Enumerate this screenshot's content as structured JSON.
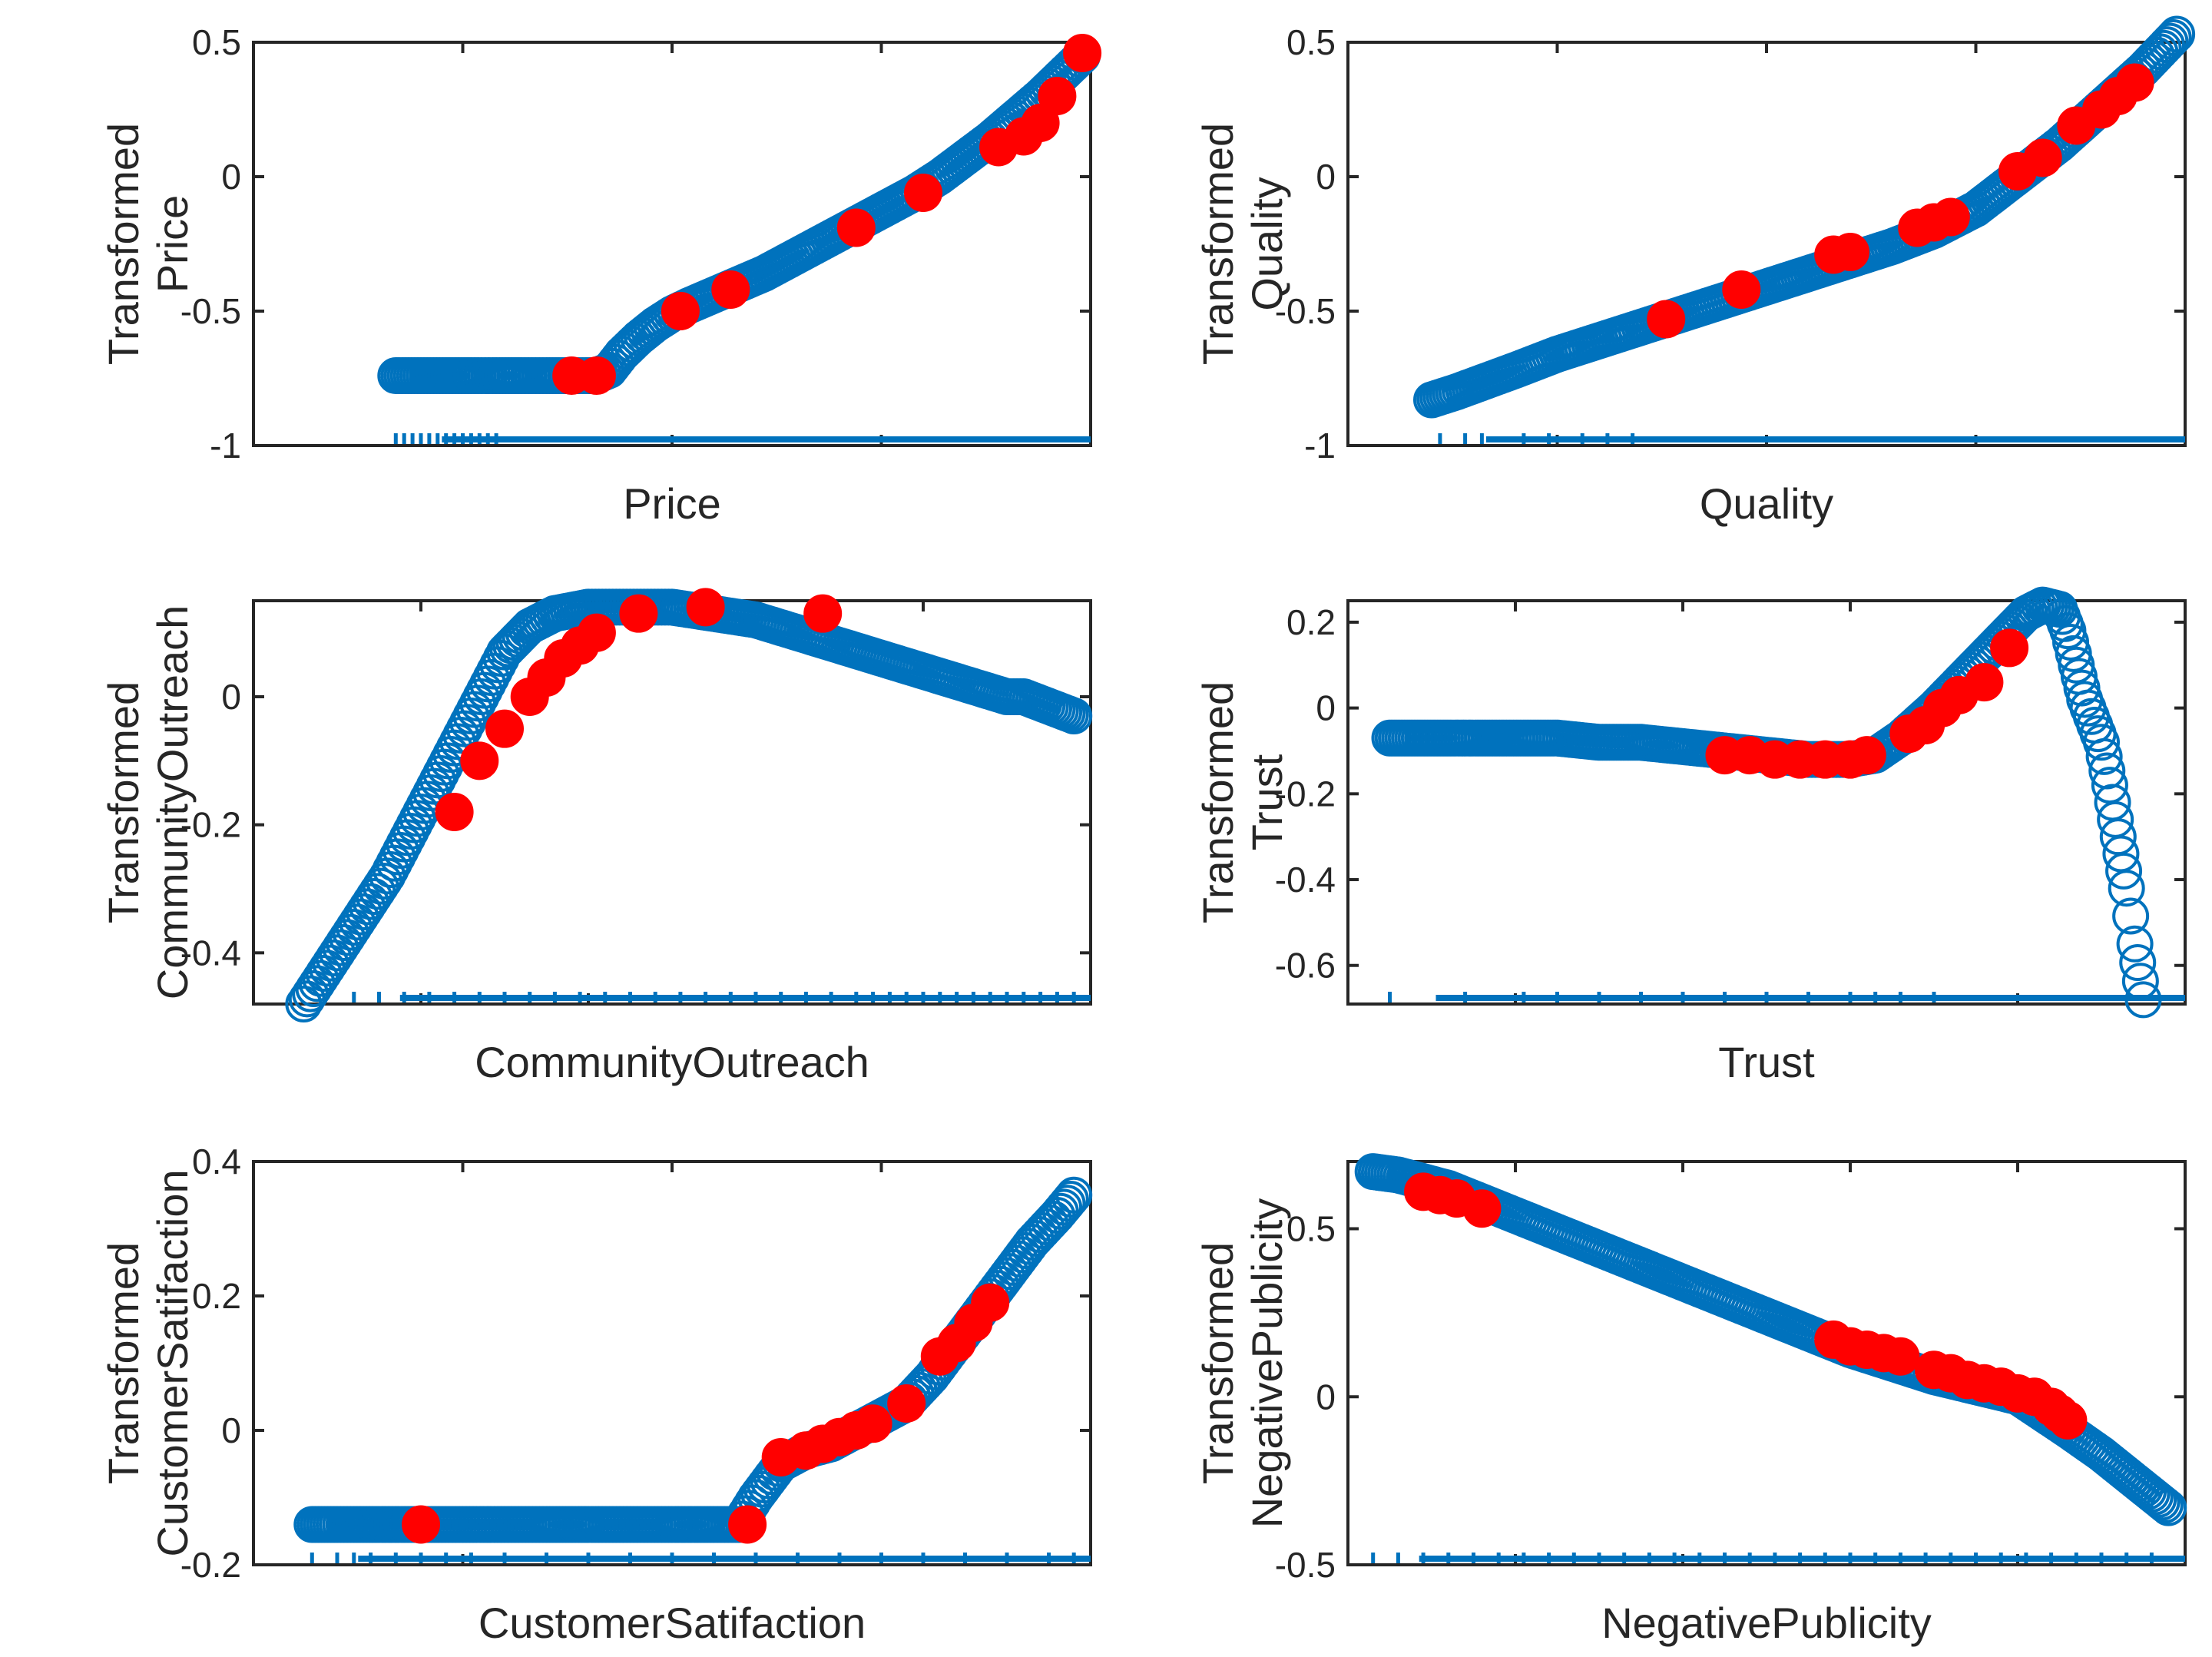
{
  "colors": {
    "marker": "#0072BD",
    "highlight": "#FF0000",
    "axis": "#262626"
  },
  "chart_data": [
    {
      "type": "scatter",
      "xlabel": "Price",
      "ylabel": [
        "Transformed",
        "Price"
      ],
      "ylim": [
        -1,
        0.5
      ],
      "yticks": [
        -1,
        -0.5,
        0,
        0.5
      ],
      "ytick_labels": [
        "-1",
        "-0.5",
        "0",
        "0.5"
      ],
      "xlim": [
        0,
        1
      ],
      "xticks": [
        0,
        0.25,
        0.5,
        0.75,
        1
      ],
      "series": [
        {
          "x": [
            0.17,
            0.2,
            0.23,
            0.26,
            0.29,
            0.32,
            0.35,
            0.38,
            0.41,
            0.425,
            0.44,
            0.46,
            0.48,
            0.5,
            0.52,
            0.55,
            0.58,
            0.61,
            0.64,
            0.67,
            0.7,
            0.73,
            0.76,
            0.79,
            0.82,
            0.85,
            0.88,
            0.91,
            0.94,
            0.97,
            0.99
          ],
          "y": [
            -0.74,
            -0.74,
            -0.74,
            -0.74,
            -0.74,
            -0.74,
            -0.74,
            -0.74,
            -0.74,
            -0.72,
            -0.66,
            -0.6,
            -0.55,
            -0.51,
            -0.48,
            -0.44,
            -0.4,
            -0.36,
            -0.31,
            -0.26,
            -0.21,
            -0.16,
            -0.11,
            -0.06,
            0.0,
            0.07,
            0.14,
            0.22,
            0.3,
            0.39,
            0.45
          ]
        }
      ],
      "highlight": {
        "x": [
          0.38,
          0.41,
          0.51,
          0.57,
          0.72,
          0.8,
          0.89,
          0.92,
          0.94,
          0.96,
          0.99
        ],
        "y": [
          -0.74,
          -0.74,
          -0.5,
          -0.42,
          -0.19,
          -0.06,
          0.11,
          0.15,
          0.2,
          0.3,
          0.46
        ]
      },
      "rug": [
        0.17,
        0.18,
        0.19,
        0.2,
        0.21,
        0.22,
        0.23,
        0.24,
        0.25,
        0.26,
        0.27,
        0.28,
        0.29
      ]
    },
    {
      "type": "scatter",
      "xlabel": "Quality",
      "ylabel": [
        "Transformed",
        "Quality"
      ],
      "ylim": [
        -1,
        0.5
      ],
      "yticks": [
        -1,
        -0.5,
        0,
        0.5
      ],
      "ytick_labels": [
        "-1",
        "-0.5",
        "0",
        "0.5"
      ],
      "xlim": [
        0,
        1
      ],
      "xticks": [
        0,
        0.25,
        0.5,
        0.75,
        1
      ],
      "series": [
        {
          "x": [
            0.1,
            0.13,
            0.2,
            0.25,
            0.28,
            0.31,
            0.34,
            0.37,
            0.4,
            0.45,
            0.5,
            0.55,
            0.6,
            0.65,
            0.7,
            0.75,
            0.8,
            0.85,
            0.9,
            0.95,
            0.99
          ],
          "y": [
            -0.83,
            -0.8,
            -0.72,
            -0.66,
            -0.63,
            -0.6,
            -0.57,
            -0.54,
            -0.51,
            -0.46,
            -0.41,
            -0.36,
            -0.31,
            -0.26,
            -0.2,
            -0.12,
            0.0,
            0.12,
            0.26,
            0.4,
            0.53
          ]
        }
      ],
      "highlight": {
        "x": [
          0.38,
          0.47,
          0.58,
          0.6,
          0.68,
          0.7,
          0.72,
          0.8,
          0.83,
          0.87,
          0.9,
          0.92,
          0.94
        ],
        "y": [
          -0.53,
          -0.42,
          -0.29,
          -0.28,
          -0.19,
          -0.17,
          -0.15,
          0.02,
          0.07,
          0.19,
          0.25,
          0.3,
          0.35
        ]
      },
      "rug": [
        0.11,
        0.14,
        0.16,
        0.21,
        0.24,
        0.28,
        0.31,
        0.34
      ]
    },
    {
      "type": "scatter",
      "xlabel": "CommunityOutreach",
      "ylabel": [
        "Transformed",
        "CommunityOutreach"
      ],
      "ylim": [
        -0.48,
        0.15
      ],
      "yticks": [
        -0.4,
        -0.2,
        0
      ],
      "ytick_labels": [
        "-0.4",
        "-0.2",
        "0"
      ],
      "xlim": [
        0,
        1
      ],
      "xticks": [
        0,
        0.2,
        0.4,
        0.6,
        0.8,
        1
      ],
      "series": [
        {
          "x": [
            0.06,
            0.08,
            0.1,
            0.12,
            0.14,
            0.16,
            0.18,
            0.2,
            0.22,
            0.24,
            0.26,
            0.28,
            0.3,
            0.33,
            0.36,
            0.4,
            0.45,
            0.5,
            0.55,
            0.6,
            0.65,
            0.7,
            0.75,
            0.8,
            0.85,
            0.9,
            0.92,
            0.96,
            0.98
          ],
          "y": [
            -0.48,
            -0.44,
            -0.4,
            -0.36,
            -0.32,
            -0.28,
            -0.23,
            -0.18,
            -0.13,
            -0.08,
            -0.03,
            0.02,
            0.07,
            0.11,
            0.13,
            0.14,
            0.14,
            0.14,
            0.13,
            0.12,
            0.1,
            0.08,
            0.06,
            0.04,
            0.02,
            0.0,
            0.0,
            -0.02,
            -0.03
          ]
        }
      ],
      "highlight": {
        "x": [
          0.24,
          0.27,
          0.3,
          0.33,
          0.35,
          0.37,
          0.39,
          0.41,
          0.46,
          0.54,
          0.68
        ],
        "y": [
          -0.18,
          -0.1,
          -0.05,
          0.0,
          0.03,
          0.06,
          0.08,
          0.1,
          0.13,
          0.14,
          0.13
        ]
      },
      "rug": [
        0.12,
        0.15,
        0.18,
        0.21,
        0.24,
        0.27,
        0.3,
        0.33,
        0.36,
        0.39,
        0.42,
        0.45,
        0.48,
        0.51,
        0.54,
        0.57,
        0.6,
        0.63,
        0.66,
        0.69,
        0.72,
        0.74,
        0.76,
        0.78,
        0.8,
        0.82,
        0.84,
        0.86,
        0.88,
        0.9,
        0.92,
        0.94,
        0.96,
        0.98
      ]
    },
    {
      "type": "scatter",
      "xlabel": "Trust",
      "ylabel": [
        "Transformed",
        "Trust"
      ],
      "ylim": [
        -0.69,
        0.25
      ],
      "yticks": [
        -0.6,
        -0.4,
        -0.2,
        0,
        0.2
      ],
      "ytick_labels": [
        "-0.6",
        "-0.4",
        "-0.2",
        "0",
        "0.2"
      ],
      "xlim": [
        0,
        1
      ],
      "xticks": [
        0,
        0.2,
        0.4,
        0.6,
        0.8,
        1
      ],
      "series": [
        {
          "x": [
            0.05,
            0.14,
            0.21,
            0.23,
            0.25,
            0.3,
            0.35,
            0.4,
            0.45,
            0.5,
            0.55,
            0.6,
            0.63,
            0.66,
            0.7,
            0.74,
            0.78,
            0.81,
            0.83,
            0.85,
            0.86,
            0.87,
            0.88,
            0.9,
            0.91,
            0.92,
            0.93,
            0.94,
            0.95
          ],
          "y": [
            -0.07,
            -0.07,
            -0.07,
            -0.07,
            -0.07,
            -0.08,
            -0.08,
            -0.09,
            -0.1,
            -0.11,
            -0.12,
            -0.12,
            -0.11,
            -0.07,
            0.0,
            0.08,
            0.16,
            0.22,
            0.24,
            0.23,
            0.18,
            0.1,
            0.02,
            -0.08,
            -0.18,
            -0.3,
            -0.42,
            -0.55,
            -0.68
          ]
        }
      ],
      "highlight": {
        "x": [
          0.45,
          0.48,
          0.51,
          0.54,
          0.57,
          0.6,
          0.62,
          0.67,
          0.69,
          0.71,
          0.73,
          0.76,
          0.79
        ],
        "y": [
          -0.11,
          -0.11,
          -0.12,
          -0.12,
          -0.12,
          -0.12,
          -0.11,
          -0.06,
          -0.04,
          0.0,
          0.03,
          0.06,
          0.14
        ]
      },
      "rug": [
        0.05,
        0.14,
        0.21,
        0.25,
        0.3,
        0.35,
        0.4,
        0.45,
        0.5,
        0.55,
        0.6,
        0.63,
        0.66,
        0.7
      ]
    },
    {
      "type": "scatter",
      "xlabel": "CustomerSatifaction",
      "ylabel": [
        "Transformed",
        "CustomerSatifaction"
      ],
      "ylim": [
        -0.2,
        0.4
      ],
      "yticks": [
        -0.2,
        0,
        0.2,
        0.4
      ],
      "ytick_labels": [
        "-0.2",
        "0",
        "0.2",
        "0.4"
      ],
      "xlim": [
        0,
        1
      ],
      "xticks": [
        0,
        0.25,
        0.5,
        0.75,
        1
      ],
      "series": [
        {
          "x": [
            0.07,
            0.1,
            0.12,
            0.15,
            0.2,
            0.25,
            0.3,
            0.35,
            0.4,
            0.45,
            0.5,
            0.55,
            0.58,
            0.6,
            0.63,
            0.66,
            0.69,
            0.72,
            0.75,
            0.78,
            0.81,
            0.84,
            0.87,
            0.9,
            0.93,
            0.96,
            0.98
          ],
          "y": [
            -0.14,
            -0.14,
            -0.14,
            -0.14,
            -0.14,
            -0.14,
            -0.14,
            -0.14,
            -0.14,
            -0.14,
            -0.14,
            -0.14,
            -0.14,
            -0.1,
            -0.05,
            -0.03,
            -0.02,
            0.0,
            0.02,
            0.04,
            0.08,
            0.13,
            0.18,
            0.23,
            0.28,
            0.32,
            0.35
          ]
        }
      ],
      "highlight": {
        "x": [
          0.2,
          0.59,
          0.63,
          0.66,
          0.68,
          0.7,
          0.72,
          0.74,
          0.78,
          0.82,
          0.84,
          0.86,
          0.88
        ],
        "y": [
          -0.14,
          -0.14,
          -0.04,
          -0.03,
          -0.02,
          -0.01,
          0.0,
          0.01,
          0.04,
          0.11,
          0.13,
          0.16,
          0.19
        ]
      },
      "rug": [
        0.07,
        0.1,
        0.12,
        0.14,
        0.17,
        0.2,
        0.23,
        0.26,
        0.3,
        0.35,
        0.4,
        0.45,
        0.5,
        0.55,
        0.6,
        0.65,
        0.7,
        0.75,
        0.8,
        0.85,
        0.9,
        0.95,
        0.98
      ]
    },
    {
      "type": "scatter",
      "xlabel": "NegativePublicity",
      "ylabel": [
        "Transformed",
        "NegativePublicity"
      ],
      "ylim": [
        -0.5,
        0.7
      ],
      "yticks": [
        -0.5,
        0,
        0.5
      ],
      "ytick_labels": [
        "-0.5",
        "0",
        "0.5"
      ],
      "xlim": [
        0,
        1
      ],
      "xticks": [
        0,
        0.2,
        0.4,
        0.6,
        0.8,
        1
      ],
      "series": [
        {
          "x": [
            0.03,
            0.06,
            0.09,
            0.12,
            0.15,
            0.2,
            0.25,
            0.3,
            0.35,
            0.4,
            0.45,
            0.5,
            0.55,
            0.6,
            0.65,
            0.7,
            0.75,
            0.8,
            0.83,
            0.86,
            0.9,
            0.94,
            0.98
          ],
          "y": [
            0.67,
            0.66,
            0.64,
            0.62,
            0.59,
            0.54,
            0.49,
            0.44,
            0.39,
            0.34,
            0.29,
            0.24,
            0.19,
            0.14,
            0.1,
            0.06,
            0.03,
            0.0,
            -0.05,
            -0.1,
            -0.17,
            -0.25,
            -0.33
          ]
        }
      ],
      "highlight": {
        "x": [
          0.09,
          0.11,
          0.13,
          0.16,
          0.58,
          0.6,
          0.62,
          0.64,
          0.66,
          0.7,
          0.72,
          0.74,
          0.76,
          0.78,
          0.8,
          0.82,
          0.84,
          0.85,
          0.86
        ],
        "y": [
          0.61,
          0.6,
          0.59,
          0.56,
          0.17,
          0.15,
          0.14,
          0.13,
          0.12,
          0.08,
          0.07,
          0.05,
          0.04,
          0.03,
          0.01,
          0.0,
          -0.03,
          -0.05,
          -0.07
        ]
      },
      "rug": [
        0.03,
        0.06,
        0.09,
        0.12,
        0.15,
        0.18,
        0.21,
        0.24,
        0.27,
        0.3,
        0.33,
        0.36,
        0.39,
        0.42,
        0.45,
        0.48,
        0.51,
        0.54,
        0.57,
        0.6,
        0.63,
        0.66,
        0.69,
        0.72,
        0.75,
        0.78,
        0.81,
        0.84,
        0.87,
        0.9,
        0.93,
        0.96
      ]
    }
  ]
}
